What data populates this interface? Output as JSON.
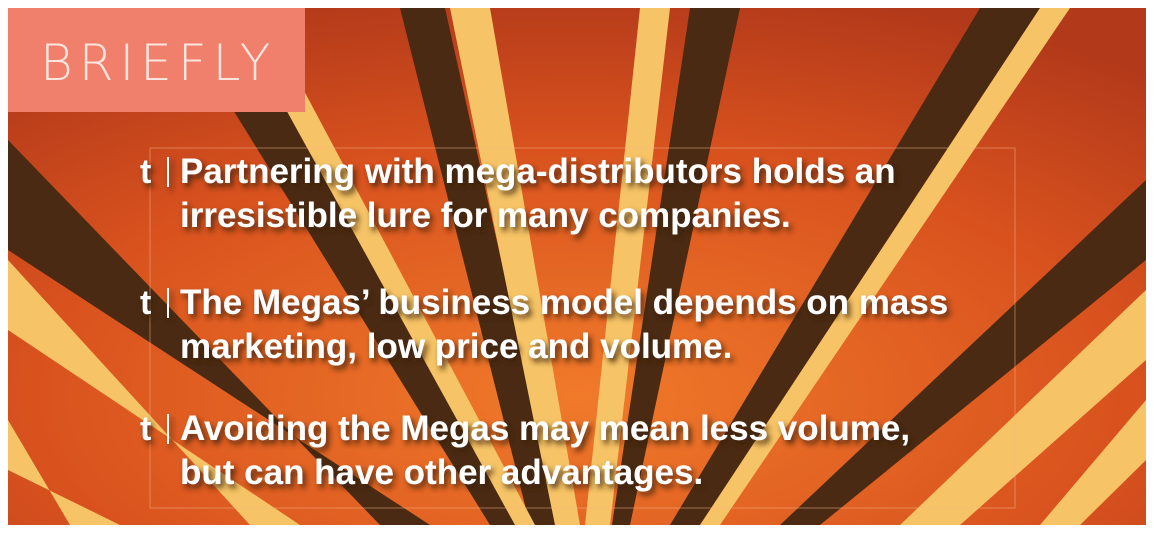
{
  "header": {
    "title": "BRIEFLY"
  },
  "bullets": {
    "marker": "t",
    "items": [
      {
        "lines": [
          "Partnering with mega-distributors holds an",
          "irresistible lure for many companies."
        ]
      },
      {
        "lines": [
          "The Megas’ business model depends on mass",
          "marketing, low price and volume."
        ]
      },
      {
        "lines": [
          "Avoiding the Megas may mean less volume,",
          "but can have other advantages."
        ]
      }
    ]
  }
}
